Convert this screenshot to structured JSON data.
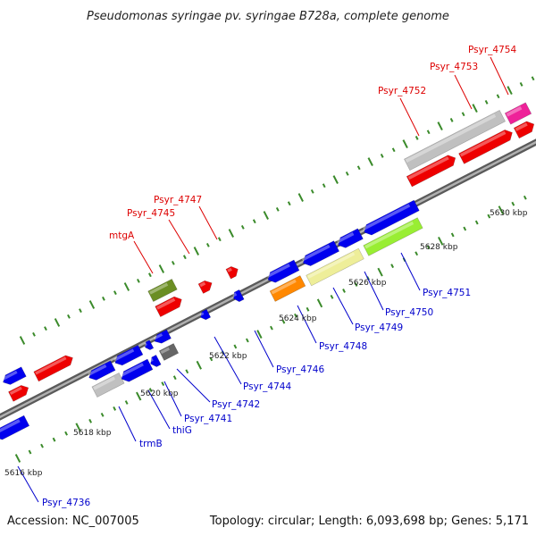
{
  "title": "Pseudomonas syringae pv. syringae B728a, complete genome",
  "footer": {
    "accession": "Accession: NC_007005",
    "summary": "Topology: circular; Length: 6,093,698 bp; Genes: 5,171"
  },
  "colors": {
    "backbone": "#888888",
    "forward_label": "#dd0000",
    "reverse_label": "#0000cc",
    "tick": "#3a8a2a",
    "forward_gene": "#ee0000",
    "reverse_gene": "#0000ee",
    "orange_gene": "#ff8800",
    "khaki_gene": "#eeee99",
    "lime_gene": "#99ee33",
    "olive_gene": "#6b8e23",
    "gray_gene": "#c0c0c0",
    "dark_gray_gene": "#666666",
    "pink_gene": "#ee2299"
  },
  "kbp_labels": [
    "5616 kbp",
    "5618 kbp",
    "5620 kbp",
    "5622 kbp",
    "5624 kbp",
    "5626 kbp",
    "5628 kbp",
    "5630 kbp"
  ],
  "labels_forward": [
    "mtgA",
    "Psyr_4745",
    "Psyr_4747",
    "Psyr_4752",
    "Psyr_4753",
    "Psyr_4754"
  ],
  "labels_reverse": [
    "Psyr_4736",
    "trmB",
    "thiG",
    "Psyr_4741",
    "Psyr_4742",
    "Psyr_4744",
    "Psyr_4746",
    "Psyr_4748",
    "Psyr_4749",
    "Psyr_4750",
    "Psyr_4751"
  ]
}
